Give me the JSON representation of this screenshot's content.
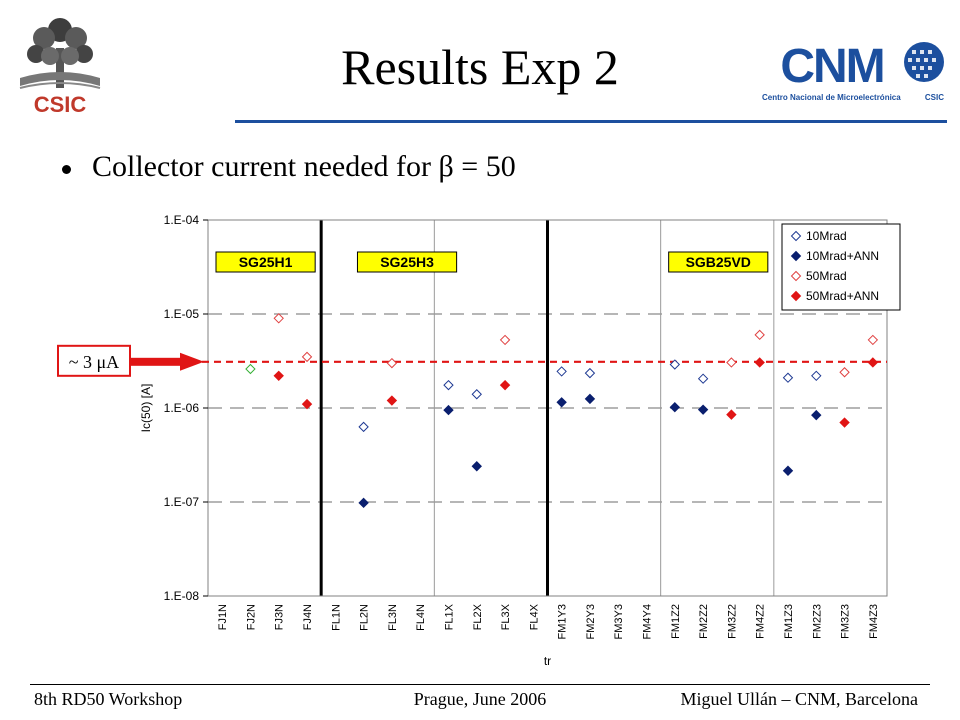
{
  "slide": {
    "title": "Results Exp 2",
    "bullet": "Collector current needed for β = 50"
  },
  "logos": {
    "left_text": "CSIC",
    "right_text": "CNM",
    "right_caption": "Centro Nacional de Microelectrónica",
    "right_caption_suffix": "CSIC"
  },
  "footer": {
    "left": "8th RD50 Workshop",
    "center": "Prague, June 2006",
    "right": "Miguel Ullán – CNM, Barcelona"
  },
  "colors": {
    "open_blue": "#1f3a93",
    "filled_navy": "#0a1f6e",
    "open_red": "#e04040",
    "filled_red": "#e01515",
    "open_green": "#35b035",
    "threshold": "#e01515",
    "arrow": "#e01515",
    "box_fill": "#ffff00",
    "title_rule": "#1c4f9e"
  },
  "chart_data": {
    "type": "scatter",
    "scale": "log",
    "ylabel": "Ic(50) [A]",
    "xlabel": "tr",
    "ylim": [
      1e-08,
      0.0001
    ],
    "y_ticks": [
      "1.E-04",
      "1.E-05",
      "1.E-06",
      "1.E-07",
      "1.E-08"
    ],
    "y_tick_values": [
      0.0001,
      1e-05,
      1e-06,
      1e-07,
      1e-08
    ],
    "grid_dashed_values": [
      1e-05,
      1e-06,
      1e-07
    ],
    "categories": [
      "FJ1N",
      "FJ2N",
      "FJ3N",
      "FJ4N",
      "FL1N",
      "FL2N",
      "FL3N",
      "FL4N",
      "FL1X",
      "FL2X",
      "FL3X",
      "FL4X",
      "FM1Y3",
      "FM2Y3",
      "FM3Y3",
      "FM4Y4",
      "FM1Z2",
      "FM2Z2",
      "FM3Z2",
      "FM4Z2",
      "FM1Z3",
      "FM2Z3",
      "FM3Z3",
      "FM4Z3"
    ],
    "thick_separators_after": [
      3,
      11
    ],
    "thin_separators_after": [
      7,
      15,
      19
    ],
    "group_labels": [
      {
        "text": "SG25H1",
        "from": 0,
        "to": 3
      },
      {
        "text": "SG25H3",
        "from": 5,
        "to": 8
      },
      {
        "text": "SGB25VD",
        "from": 16,
        "to": 19
      }
    ],
    "series": [
      {
        "name": "10Mrad",
        "marker": "open",
        "color": "#1f3a93",
        "values": [
          null,
          null,
          null,
          null,
          null,
          6.3e-07,
          null,
          null,
          1.75e-06,
          1.4e-06,
          null,
          null,
          2.45e-06,
          2.35e-06,
          null,
          null,
          2.9e-06,
          2.05e-06,
          null,
          null,
          2.1e-06,
          2.2e-06,
          null,
          null
        ]
      },
      {
        "name": "10Mrad+ANN",
        "marker": "filled",
        "color": "#0a1f6e",
        "values": [
          null,
          null,
          null,
          null,
          null,
          9.8e-08,
          null,
          null,
          9.5e-07,
          2.4e-07,
          null,
          null,
          1.15e-06,
          1.25e-06,
          null,
          null,
          1.02e-06,
          9.6e-07,
          null,
          null,
          2.15e-07,
          8.4e-07,
          null,
          null
        ]
      },
      {
        "name": "50Mrad",
        "marker": "open",
        "color": "#e04040",
        "values": [
          null,
          null,
          9e-06,
          3.5e-06,
          null,
          null,
          3e-06,
          null,
          null,
          null,
          5.3e-06,
          null,
          null,
          null,
          null,
          null,
          null,
          null,
          3.05e-06,
          6e-06,
          null,
          null,
          2.4e-06,
          5.3e-06
        ]
      },
      {
        "name": "50Mrad+ANN",
        "marker": "filled",
        "color": "#e01515",
        "values": [
          null,
          null,
          2.2e-06,
          1.1e-06,
          null,
          null,
          1.2e-06,
          null,
          null,
          null,
          1.75e-06,
          null,
          null,
          null,
          null,
          null,
          null,
          null,
          8.5e-07,
          3.05e-06,
          null,
          null,
          7e-07,
          3.05e-06
        ]
      }
    ],
    "extra_points": [
      {
        "category_index": 1,
        "value": 2.6e-06,
        "marker": "open",
        "color": "#35b035"
      }
    ],
    "threshold": {
      "value": 3.1e-06,
      "label": "~ 3 μA"
    },
    "legend_position": "top-right"
  }
}
